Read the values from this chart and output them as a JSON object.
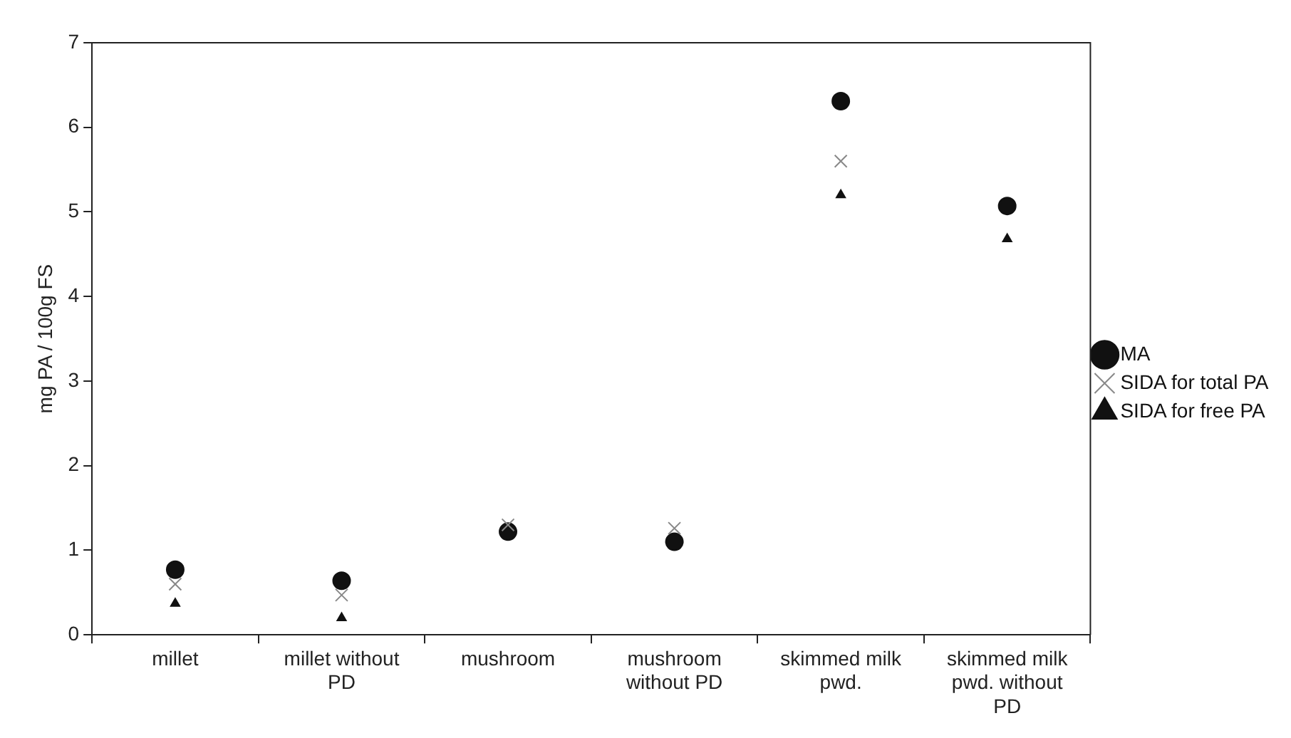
{
  "chart_data": {
    "type": "scatter",
    "ylabel": "mg PA / 100g FS",
    "categories": [
      "millet",
      "millet without PD",
      "mushroom",
      "mushroom without PD",
      "skimmed milk pwd.",
      "skimmed milk pwd. without PD"
    ],
    "series": [
      {
        "name": "MA",
        "color": "#111111",
        "marker": "circle",
        "values": [
          0.77,
          0.64,
          1.22,
          1.1,
          6.31,
          5.07
        ]
      },
      {
        "name": "SIDA for total PA",
        "color": "#888888",
        "marker": "cross",
        "values": [
          0.6,
          0.47,
          1.3,
          1.26,
          5.6,
          null
        ]
      },
      {
        "name": "SIDA for free PA",
        "color": "#111111",
        "marker": "triangle",
        "values": [
          0.37,
          0.2,
          null,
          null,
          5.2,
          4.68
        ]
      }
    ],
    "ylim": [
      0,
      7
    ],
    "yticks": [
      0,
      1,
      2,
      3,
      4,
      5,
      6,
      7
    ],
    "grid": false,
    "legend": "right"
  }
}
